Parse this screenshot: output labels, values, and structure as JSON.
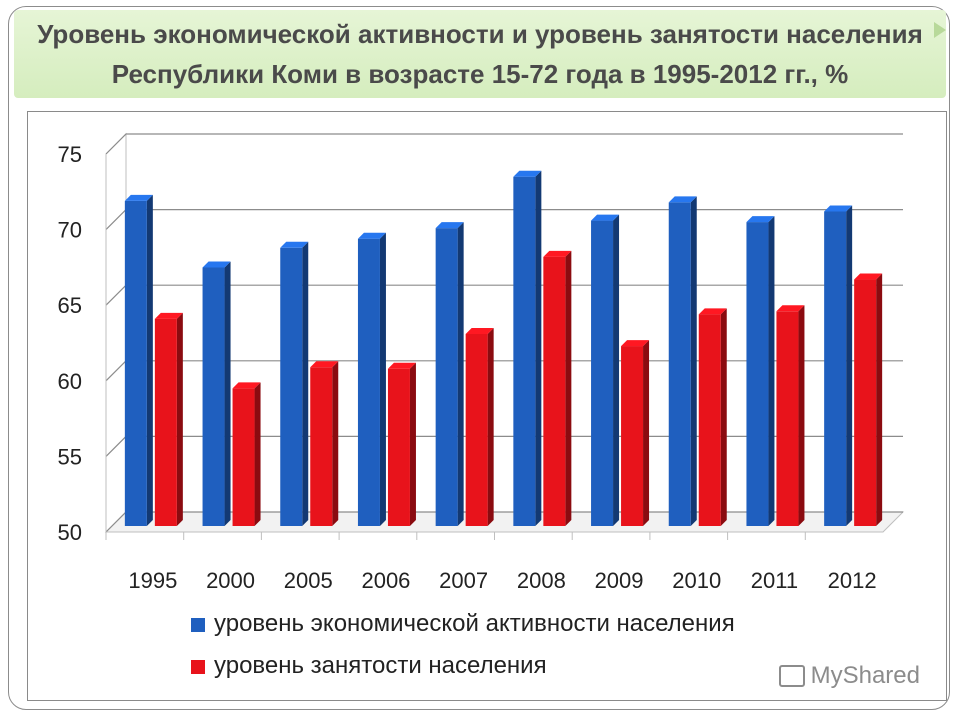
{
  "title": {
    "line1": "Уровень экономической активности и уровень занятости населения",
    "line2": "Республики Коми в возрасте 15-72 года в 1995-2012 гг., %"
  },
  "chart_data": {
    "type": "bar",
    "categories": [
      "1995",
      "2000",
      "2005",
      "2006",
      "2007",
      "2008",
      "2009",
      "2010",
      "2011",
      "2012"
    ],
    "series": [
      {
        "name": "уровень экономической активности населения",
        "color": "#1f5fbf",
        "values": [
          71.5,
          67.1,
          68.4,
          69.0,
          69.7,
          73.1,
          70.2,
          71.4,
          70.1,
          70.8
        ]
      },
      {
        "name": "уровень занятости населения",
        "color": "#e8131b",
        "values": [
          63.7,
          59.1,
          60.5,
          60.4,
          62.7,
          67.8,
          61.9,
          64.0,
          64.2,
          66.3
        ]
      }
    ],
    "ylim": [
      50,
      75
    ],
    "yticks": [
      50,
      55,
      60,
      65,
      70,
      75
    ],
    "grid": true,
    "legend_position": "bottom"
  },
  "watermark": "MyShared"
}
